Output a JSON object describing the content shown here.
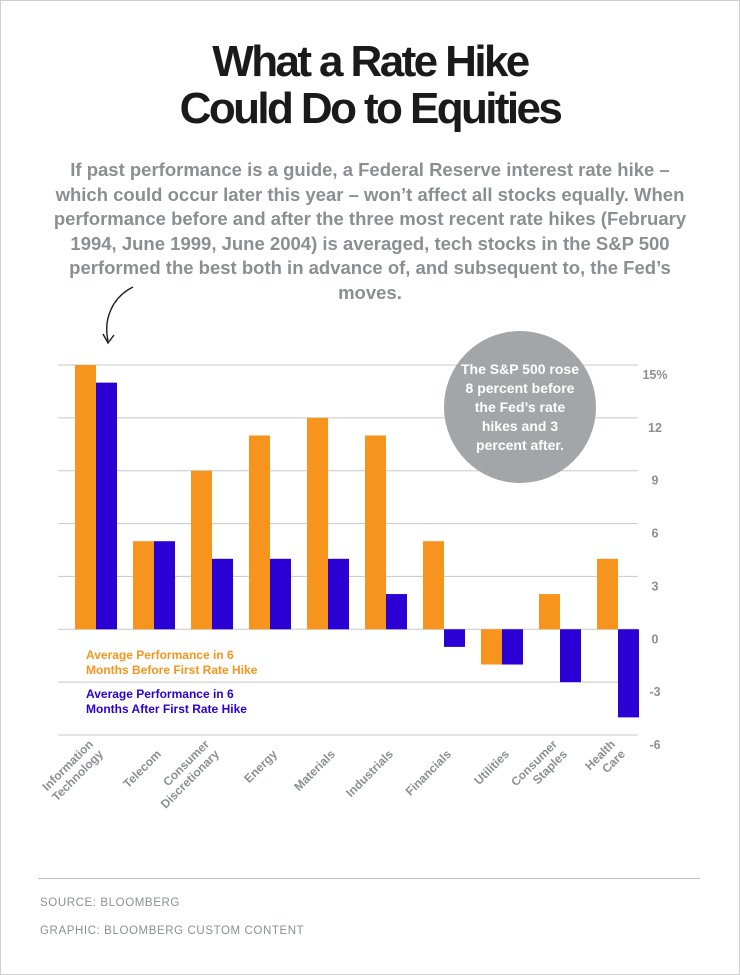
{
  "header": {
    "title_line1": "What a Rate Hike",
    "title_line2": "Could Do to Equities",
    "subtitle": "If past performance is a guide, a Federal Reserve interest rate hike – which could occur later this year – won’t affect all stocks equally. When performance before and after the three most recent rate hikes (February 1994, June 1999, June 2004) is averaged, tech stocks in the S&P 500 performed the best both in advance of, and subsequent to, the Fed’s moves."
  },
  "callout": {
    "text": "The S&P 500 rose 8 percent before the Fed’s rate hikes and 3 percent after."
  },
  "colors": {
    "before": "#f7941d",
    "after": "#2a00d4",
    "gridline": "#c8c8c8",
    "axis_text": "#8b8f93",
    "callout_bg": "#a3a6a9"
  },
  "chart_data": {
    "type": "bar",
    "categories": [
      "Information Technology",
      "Telecom",
      "Consumer Discretionary",
      "Energy",
      "Materials",
      "Industrials",
      "Financials",
      "Utilities",
      "Consumer Staples",
      "Health Care"
    ],
    "series": [
      {
        "name": "Average Performance in 6 Months Before First Rate Hike",
        "color": "#f7941d",
        "values": [
          15,
          5,
          9,
          11,
          12,
          11,
          5,
          -2,
          2,
          4
        ]
      },
      {
        "name": "Average Performance in 6 Months After First Rate Hike",
        "color": "#2a00d4",
        "values": [
          14,
          5,
          4,
          4,
          4,
          2,
          -1,
          -2,
          -3,
          -5
        ]
      }
    ],
    "yticks": [
      "15%",
      "12",
      "9",
      "6",
      "3",
      "0",
      "-3",
      "-6"
    ],
    "ytick_values": [
      15,
      12,
      9,
      6,
      3,
      0,
      -3,
      -6
    ],
    "ylim": [
      -6,
      15
    ],
    "grid": true,
    "y_axis_position": "right",
    "legend_position": "lower-left"
  },
  "footer": {
    "source": "SOURCE: BLOOMBERG",
    "graphic": "GRAPHIC: BLOOMBERG CUSTOM CONTENT"
  }
}
